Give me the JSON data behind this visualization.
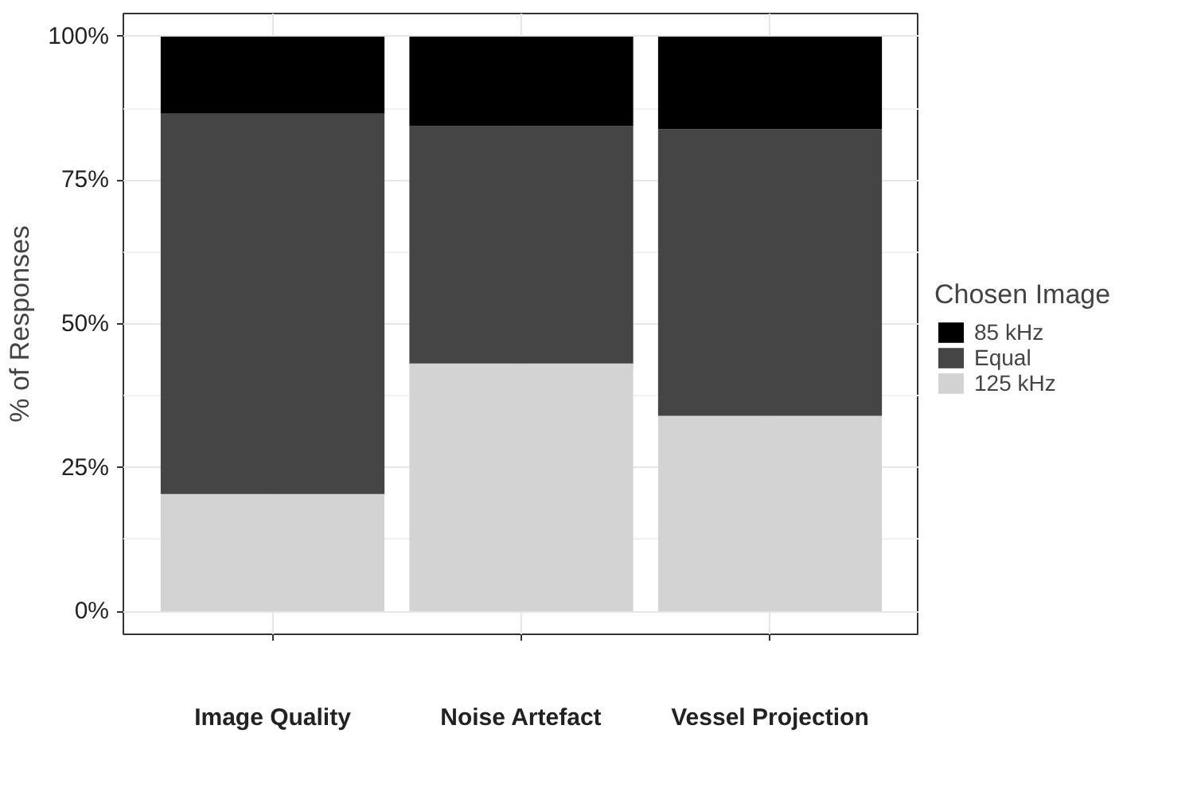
{
  "chart_data": {
    "type": "bar",
    "stacked": true,
    "ylabel": "% of Responses",
    "legend_title": "Chosen Image",
    "legend": "right",
    "grid": true,
    "categories": [
      "Image Quality",
      "Noise Artefact",
      "Vessel Projection"
    ],
    "series": [
      {
        "name": "125 kHz",
        "color": "#d3d3d3",
        "values": [
          20.4,
          43.1,
          34.0
        ]
      },
      {
        "name": "Equal",
        "color": "#454545",
        "values": [
          66.2,
          41.3,
          49.9
        ]
      },
      {
        "name": "85 kHz",
        "color": "#000000",
        "values": [
          13.4,
          15.6,
          16.1
        ]
      }
    ],
    "ylim": [
      -4,
      104
    ],
    "yticks": [
      {
        "value": 0,
        "label": "0%"
      },
      {
        "value": 25,
        "label": "25%"
      },
      {
        "value": 50,
        "label": "50%"
      },
      {
        "value": 75,
        "label": "75%"
      },
      {
        "value": 100,
        "label": "100%"
      }
    ]
  }
}
